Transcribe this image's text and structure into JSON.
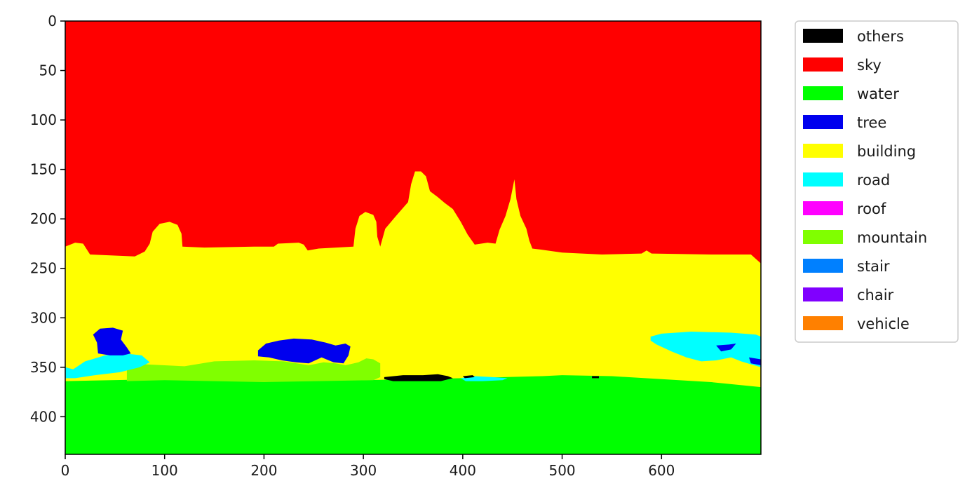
{
  "chart_data": {
    "type": "heatmap",
    "title": "",
    "xlabel": "",
    "ylabel": "",
    "image_width": 700,
    "image_height": 438,
    "xlim": [
      0,
      700
    ],
    "ylim": [
      438,
      0
    ],
    "x_ticks": [
      "0",
      "100",
      "200",
      "300",
      "400",
      "500",
      "600"
    ],
    "y_ticks": [
      "0",
      "50",
      "100",
      "150",
      "200",
      "250",
      "300",
      "350",
      "400"
    ],
    "grid": false,
    "legend_position": "outside-right",
    "legend": [
      {
        "label": "others",
        "color": "#000000"
      },
      {
        "label": "sky",
        "color": "#ff0000"
      },
      {
        "label": "water",
        "color": "#00ff00"
      },
      {
        "label": "tree",
        "color": "#0000ee"
      },
      {
        "label": "building",
        "color": "#ffff00"
      },
      {
        "label": "road",
        "color": "#00ffff"
      },
      {
        "label": "roof",
        "color": "#ff00ff"
      },
      {
        "label": "mountain",
        "color": "#80ff00"
      },
      {
        "label": "stair",
        "color": "#0080ff"
      },
      {
        "label": "chair",
        "color": "#8000ff"
      },
      {
        "label": "vehicle",
        "color": "#ff8000"
      }
    ],
    "regions": [
      {
        "class": "sky",
        "color": "#ff0000",
        "points": [
          [
            0,
            0
          ],
          [
            700,
            0
          ],
          [
            700,
            245
          ],
          [
            0,
            245
          ]
        ]
      },
      {
        "class": "building",
        "color": "#ffff00",
        "points": [
          [
            0,
            228
          ],
          [
            10,
            224
          ],
          [
            18,
            225
          ],
          [
            25,
            236
          ],
          [
            70,
            238
          ],
          [
            80,
            233
          ],
          [
            85,
            225
          ],
          [
            88,
            213
          ],
          [
            95,
            205
          ],
          [
            105,
            203
          ],
          [
            113,
            206
          ],
          [
            117,
            215
          ],
          [
            118,
            228
          ],
          [
            140,
            229
          ],
          [
            190,
            228
          ],
          [
            210,
            228
          ],
          [
            214,
            225
          ],
          [
            235,
            224
          ],
          [
            240,
            226
          ],
          [
            244,
            232
          ],
          [
            255,
            230
          ],
          [
            290,
            228
          ],
          [
            292,
            210
          ],
          [
            296,
            197
          ],
          [
            302,
            193
          ],
          [
            310,
            196
          ],
          [
            313,
            203
          ],
          [
            314,
            218
          ],
          [
            317,
            228
          ],
          [
            322,
            210
          ],
          [
            332,
            198
          ],
          [
            345,
            183
          ],
          [
            348,
            165
          ],
          [
            352,
            152
          ],
          [
            358,
            152
          ],
          [
            363,
            157
          ],
          [
            367,
            172
          ],
          [
            375,
            178
          ],
          [
            382,
            184
          ],
          [
            390,
            190
          ],
          [
            398,
            203
          ],
          [
            405,
            216
          ],
          [
            412,
            226
          ],
          [
            425,
            224
          ],
          [
            433,
            225
          ],
          [
            437,
            211
          ],
          [
            443,
            197
          ],
          [
            448,
            180
          ],
          [
            452,
            160
          ],
          [
            454,
            180
          ],
          [
            458,
            197
          ],
          [
            464,
            210
          ],
          [
            467,
            222
          ],
          [
            470,
            230
          ],
          [
            478,
            231
          ],
          [
            500,
            234
          ],
          [
            540,
            236
          ],
          [
            580,
            235
          ],
          [
            585,
            232
          ],
          [
            590,
            235
          ],
          [
            650,
            236
          ],
          [
            690,
            236
          ],
          [
            700,
            245
          ],
          [
            700,
            372
          ],
          [
            0,
            372
          ]
        ]
      },
      {
        "class": "water",
        "color": "#00ff00",
        "points": [
          [
            0,
            364
          ],
          [
            100,
            362
          ],
          [
            200,
            363
          ],
          [
            300,
            363
          ],
          [
            400,
            361
          ],
          [
            480,
            359
          ],
          [
            500,
            358
          ],
          [
            550,
            359
          ],
          [
            600,
            362
          ],
          [
            650,
            365
          ],
          [
            700,
            370
          ],
          [
            700,
            438
          ],
          [
            0,
            438
          ]
        ]
      },
      {
        "class": "mountain",
        "color": "#80ff00",
        "points": [
          [
            62,
            352
          ],
          [
            80,
            347
          ],
          [
            120,
            349
          ],
          [
            150,
            344
          ],
          [
            190,
            343
          ],
          [
            220,
            344
          ],
          [
            245,
            348
          ],
          [
            260,
            345
          ],
          [
            272,
            346
          ],
          [
            282,
            348
          ],
          [
            295,
            345
          ],
          [
            303,
            341
          ],
          [
            310,
            342
          ],
          [
            317,
            346
          ],
          [
            317,
            360
          ],
          [
            310,
            363
          ],
          [
            200,
            365
          ],
          [
            100,
            363
          ],
          [
            62,
            364
          ]
        ]
      },
      {
        "class": "road",
        "color": "#00ffff",
        "points": [
          [
            0,
            350
          ],
          [
            8,
            352
          ],
          [
            20,
            344
          ],
          [
            40,
            338
          ],
          [
            60,
            336
          ],
          [
            77,
            338
          ],
          [
            85,
            345
          ],
          [
            75,
            350
          ],
          [
            55,
            355
          ],
          [
            30,
            358
          ],
          [
            10,
            361
          ],
          [
            0,
            361
          ]
        ]
      },
      {
        "class": "road",
        "color": "#00ffff",
        "points": [
          [
            589,
            319
          ],
          [
            600,
            316
          ],
          [
            630,
            314
          ],
          [
            670,
            315
          ],
          [
            695,
            317
          ],
          [
            700,
            319
          ],
          [
            700,
            350
          ],
          [
            690,
            347
          ],
          [
            680,
            344
          ],
          [
            670,
            340
          ],
          [
            655,
            343
          ],
          [
            640,
            344
          ],
          [
            625,
            340
          ],
          [
            610,
            334
          ],
          [
            595,
            327
          ],
          [
            589,
            323
          ]
        ]
      },
      {
        "class": "road",
        "color": "#00ffff",
        "points": [
          [
            398,
            361
          ],
          [
            412,
            359
          ],
          [
            430,
            360
          ],
          [
            445,
            361
          ],
          [
            440,
            363
          ],
          [
            420,
            364
          ],
          [
            403,
            364
          ]
        ]
      },
      {
        "class": "tree",
        "color": "#0000ee",
        "points": [
          [
            28,
            317
          ],
          [
            35,
            311
          ],
          [
            48,
            310
          ],
          [
            58,
            313
          ],
          [
            56,
            322
          ],
          [
            62,
            330
          ],
          [
            66,
            336
          ],
          [
            58,
            338
          ],
          [
            45,
            338
          ],
          [
            33,
            336
          ],
          [
            32,
            325
          ]
        ]
      },
      {
        "class": "tree",
        "color": "#0000ee",
        "points": [
          [
            194,
            333
          ],
          [
            202,
            326
          ],
          [
            215,
            323
          ],
          [
            230,
            321
          ],
          [
            248,
            322
          ],
          [
            262,
            325
          ],
          [
            272,
            328
          ],
          [
            282,
            326
          ],
          [
            287,
            329
          ],
          [
            285,
            338
          ],
          [
            280,
            346
          ],
          [
            270,
            345
          ],
          [
            258,
            340
          ],
          [
            245,
            346
          ],
          [
            232,
            345
          ],
          [
            218,
            343
          ],
          [
            205,
            340
          ],
          [
            194,
            339
          ]
        ]
      },
      {
        "class": "tree",
        "color": "#0000ee",
        "points": [
          [
            655,
            328
          ],
          [
            668,
            327
          ],
          [
            675,
            326
          ],
          [
            670,
            332
          ],
          [
            660,
            334
          ]
        ]
      },
      {
        "class": "tree",
        "color": "#0000ee",
        "points": [
          [
            688,
            340
          ],
          [
            700,
            342
          ],
          [
            700,
            348
          ],
          [
            690,
            346
          ]
        ]
      },
      {
        "class": "others",
        "color": "#000000",
        "points": [
          [
            321,
            360
          ],
          [
            340,
            358
          ],
          [
            360,
            358
          ],
          [
            375,
            357
          ],
          [
            385,
            359
          ],
          [
            390,
            361
          ],
          [
            378,
            364
          ],
          [
            355,
            364
          ],
          [
            330,
            364
          ],
          [
            321,
            362
          ]
        ]
      },
      {
        "class": "others",
        "color": "#000000",
        "points": [
          [
            400,
            359
          ],
          [
            410,
            358
          ],
          [
            412,
            360
          ],
          [
            402,
            361
          ]
        ]
      },
      {
        "class": "others",
        "color": "#000000",
        "points": [
          [
            530,
            359
          ],
          [
            537,
            359
          ],
          [
            537,
            361
          ],
          [
            530,
            361
          ]
        ]
      }
    ]
  }
}
